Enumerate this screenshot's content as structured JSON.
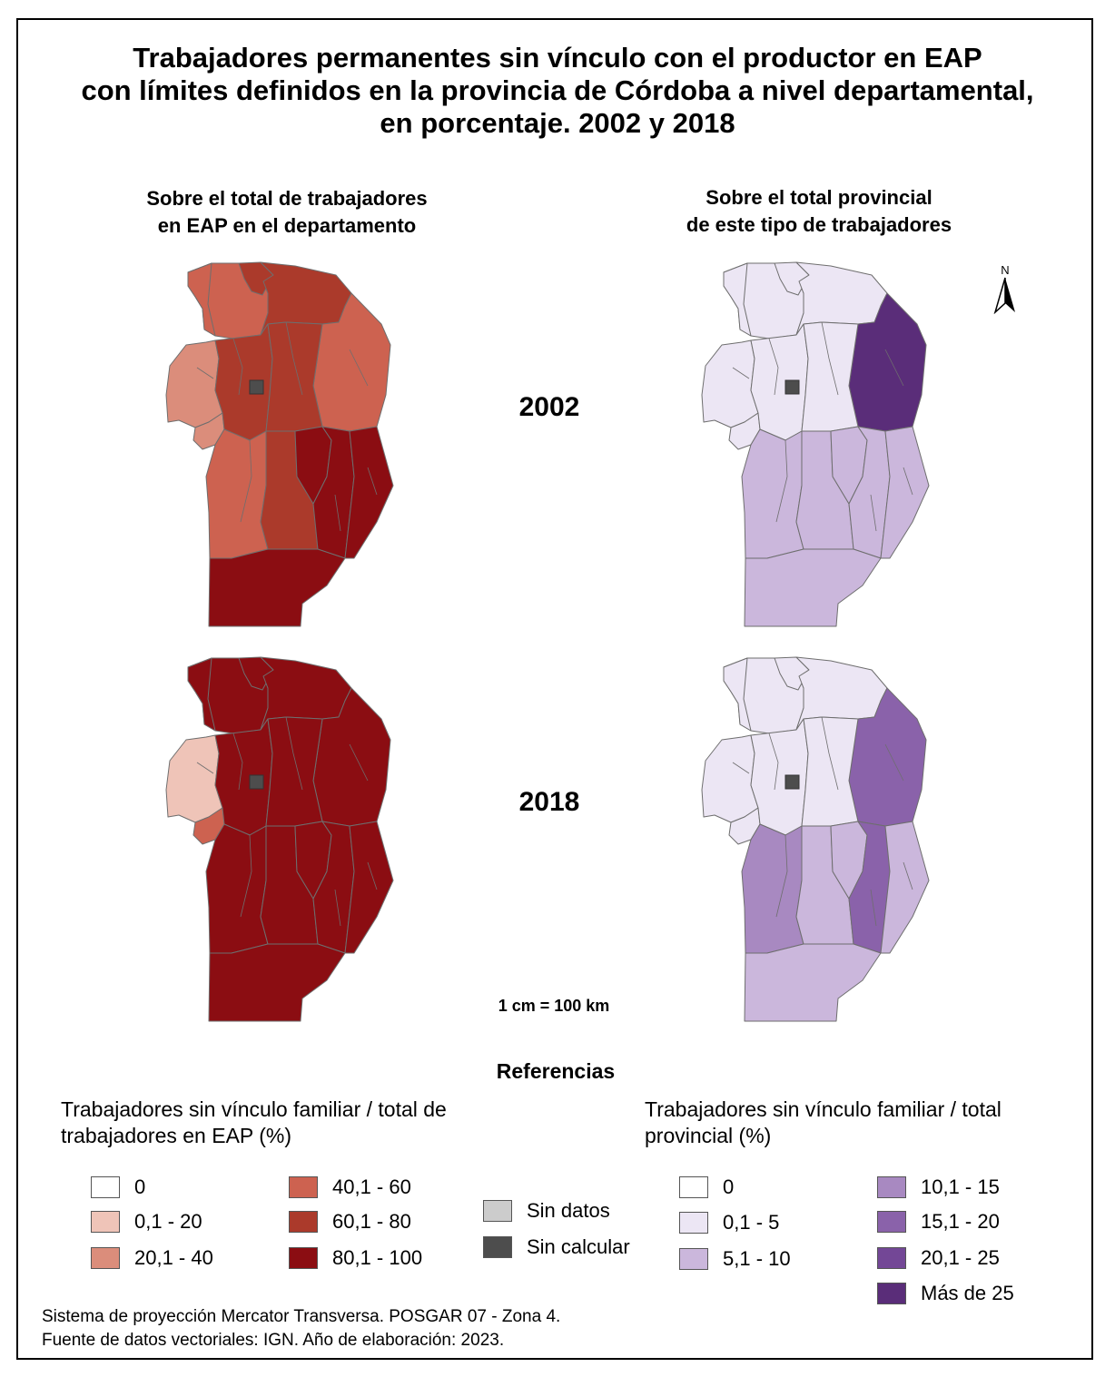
{
  "title": {
    "line1": "Trabajadores permanentes sin vínculo con el productor en EAP",
    "line2": "con límites definidos en la provincia de Córdoba a nivel departamental,",
    "line3": "en porcentaje. 2002 y 2018"
  },
  "subtitles": {
    "left_line1": "Sobre el total de trabajadores",
    "left_line2": "en EAP en el departamento",
    "right_line1": "Sobre el total provincial",
    "right_line2": "de este tipo de trabajadores"
  },
  "years": {
    "first": "2002",
    "second": "2018"
  },
  "north_arrow": {
    "label": "N"
  },
  "scale": "1 cm = 100 km",
  "colors": {
    "red": [
      "#ffffff",
      "#efc4b8",
      "#db8d7b",
      "#cd6250",
      "#ab3a2b",
      "#8b0d12"
    ],
    "purple": [
      "#ffffff",
      "#ece6f4",
      "#cbb7dc",
      "#a889c1",
      "#8a62aa",
      "#734796",
      "#5a2d79"
    ],
    "sin_datos": "#cccccc",
    "sin_calcular": "#4d4d4d",
    "border": "#6e6e6e"
  },
  "references": {
    "title": "Referencias",
    "left": {
      "heading_line1": "Trabajadores sin vínculo familiar /  total de",
      "heading_line2": "trabajadores en EAP (%)",
      "items": [
        "0",
        "0,1 - 20",
        "20,1 - 40",
        "40,1 - 60",
        "60,1 - 80",
        "80,1 - 100"
      ]
    },
    "middle": {
      "items": [
        "Sin datos",
        "Sin calcular"
      ]
    },
    "right": {
      "heading_line1": "Trabajadores sin vínculo familiar / total",
      "heading_line2": "provincial (%)",
      "items": [
        "0",
        "0,1 - 5",
        "5,1 - 10",
        "10,1 - 15",
        "15,1 - 20",
        "20,1 - 25",
        "Más de 25"
      ]
    }
  },
  "maps": {
    "map_2002_total_eap": {
      "year": "2002",
      "regions": {
        "NW": 3,
        "NWs": 4,
        "N": 4,
        "NM": 3,
        "NE": 3,
        "W": 2,
        "SWmini": 2,
        "CW": 4,
        "C": 4,
        "CE": 4,
        "SW": 3,
        "SC": 4,
        "SEa": 5,
        "SEb": 5,
        "SEc": 5,
        "S": 5
      }
    },
    "map_2002_total_provincial": {
      "year": "2002",
      "regions": {
        "NW": 1,
        "NWs": 1,
        "N": 1,
        "NM": 1,
        "NE": 6,
        "W": 1,
        "SWmini": 1,
        "CW": 1,
        "C": 1,
        "CE": 1,
        "SW": 2,
        "SC": 2,
        "SEa": 2,
        "SEb": 2,
        "SEc": 2,
        "S": 2
      }
    },
    "map_2018_total_eap": {
      "year": "2018",
      "regions": {
        "NW": 5,
        "NWs": 5,
        "N": 5,
        "NM": 5,
        "NE": 5,
        "W": 1,
        "SWmini": 3,
        "CW": 5,
        "C": 5,
        "CE": 5,
        "SW": 5,
        "SC": 5,
        "SEa": 5,
        "SEb": 5,
        "SEc": 5,
        "S": 5
      }
    },
    "map_2018_total_provincial": {
      "year": "2018",
      "regions": {
        "NW": 1,
        "NWs": 1,
        "N": 1,
        "NM": 1,
        "NE": 4,
        "W": 1,
        "SWmini": 1,
        "CW": 1,
        "C": 1,
        "CE": 1,
        "SW": 3,
        "SC": 2,
        "SEa": 2,
        "SEb": 4,
        "SEc": 2,
        "S": 2
      }
    }
  },
  "footer": {
    "line1": "Sistema de proyección Mercator Transversa. POSGAR 07 - Zona 4.",
    "line2": "Fuente de datos vectoriales: IGN. Año de elaboración: 2023."
  }
}
